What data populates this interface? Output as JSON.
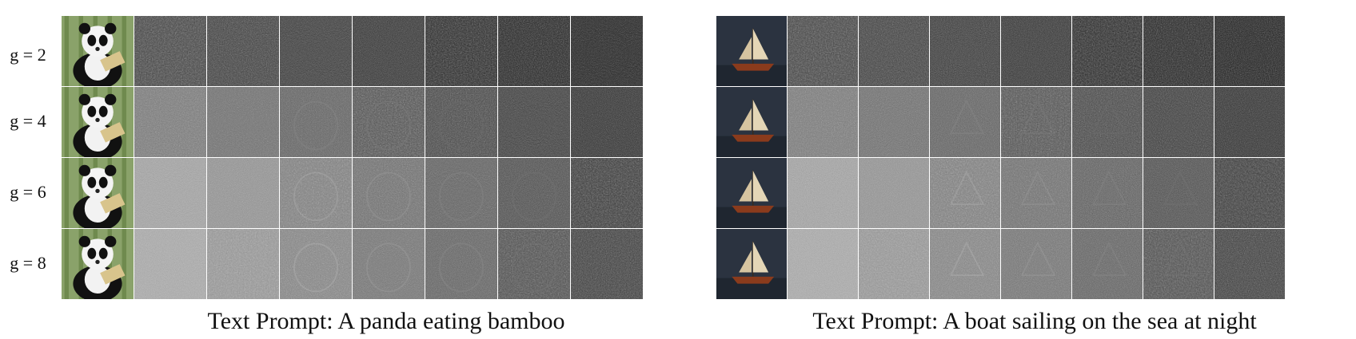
{
  "rows": [
    {
      "label": "g = 2",
      "bright": 0.3
    },
    {
      "label": "g = 4",
      "bright": 0.55
    },
    {
      "label": "g = 6",
      "bright": 0.75
    },
    {
      "label": "g = 8",
      "bright": 0.78
    }
  ],
  "panels": [
    {
      "caption": "Text Prompt: A panda eating bamboo",
      "subject": "panda-image",
      "bg": "#8aa26a"
    },
    {
      "caption": "Text Prompt: A boat sailing on the sea at night",
      "subject": "boat-image",
      "bg": "#2b3340"
    }
  ],
  "steps_per_row": 8
}
